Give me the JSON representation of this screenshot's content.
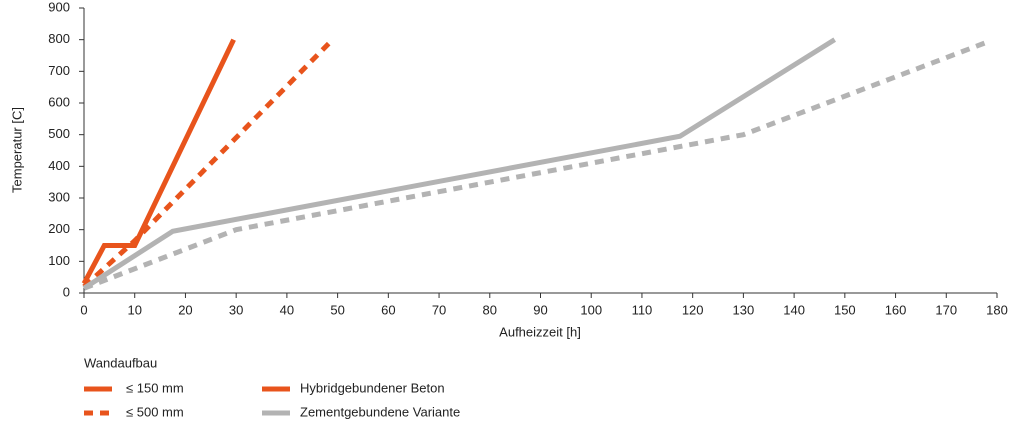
{
  "chart_data": {
    "type": "line",
    "x_label": "Aufheizzeit [h]",
    "y_label": "Temperatur [C]",
    "xlim": [
      0,
      180
    ],
    "xticks": [
      0,
      10,
      20,
      30,
      40,
      50,
      60,
      70,
      80,
      90,
      100,
      110,
      120,
      130,
      140,
      150,
      160,
      170,
      180
    ],
    "ylim": [
      0,
      900
    ],
    "yticks": [
      0,
      100,
      200,
      300,
      400,
      500,
      600,
      700,
      800,
      900
    ],
    "grid": false,
    "series": [
      {
        "color": "#e8541c",
        "dashed": false,
        "x": [
          0,
          4,
          10,
          29.5
        ],
        "values": [
          30,
          150,
          150,
          800
        ]
      },
      {
        "color": "#e8541c",
        "dashed": true,
        "x": [
          0,
          10,
          49
        ],
        "values": [
          20,
          165,
          800
        ]
      },
      {
        "color": "#b3b3b3",
        "dashed": false,
        "x": [
          0,
          17.5,
          117.5,
          148
        ],
        "values": [
          15,
          195,
          495,
          800
        ]
      },
      {
        "color": "#b3b3b3",
        "dashed": true,
        "x": [
          0,
          30,
          130,
          178.5
        ],
        "values": [
          15,
          200,
          500,
          795
        ]
      }
    ],
    "legend": {
      "title": "Wandaufbau",
      "styles": [
        {
          "label": "≤ 150 mm",
          "dashed": false,
          "color": "#e8541c"
        },
        {
          "label": "≤ 500 mm",
          "dashed": true,
          "color": "#e8541c"
        }
      ],
      "colors": [
        {
          "label": "Hybridgebundener Beton",
          "color": "#e8541c"
        },
        {
          "label": "Zementgebundene Variante",
          "color": "#b3b3b3"
        }
      ]
    }
  }
}
